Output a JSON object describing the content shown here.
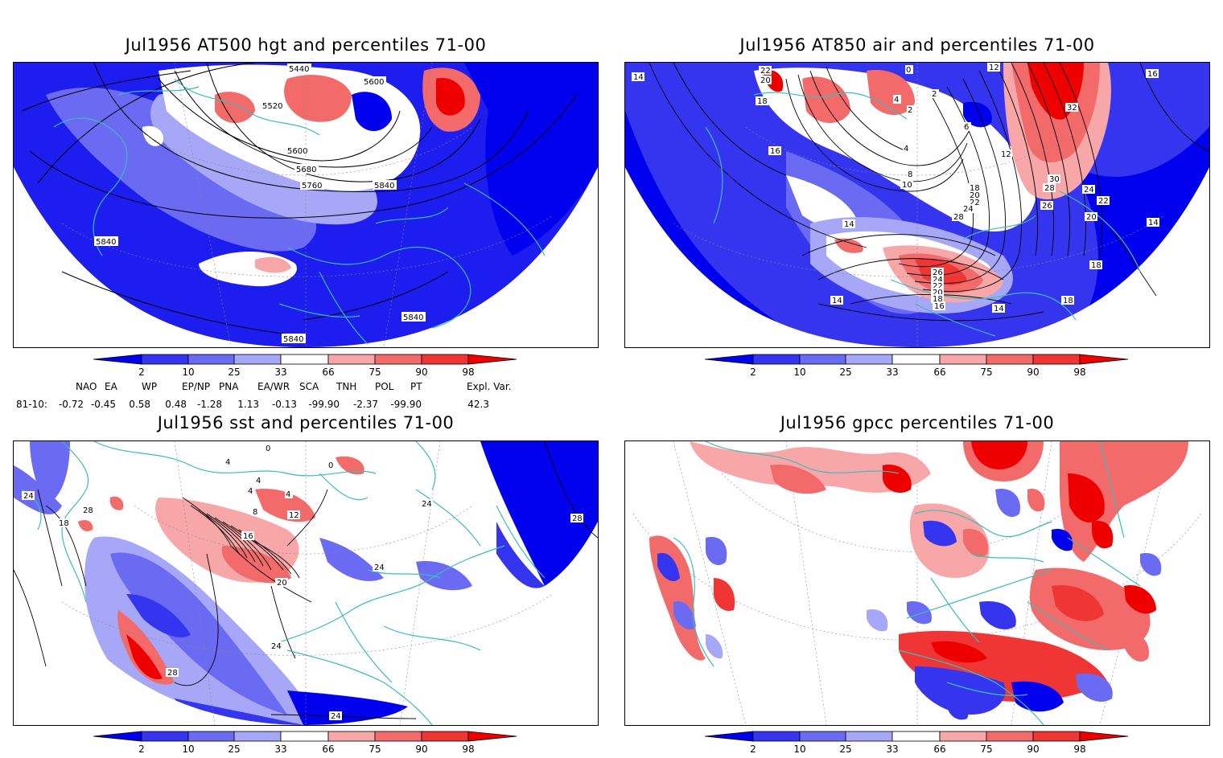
{
  "panels": [
    {
      "id": "hgt",
      "title": "Jul1956 AT500 hgt and percentiles 71-00",
      "contour_labels": [
        "5440",
        "5600",
        "5520",
        "5600",
        "5680",
        "5760",
        "5840",
        "5840",
        "5840",
        "5840"
      ]
    },
    {
      "id": "air",
      "title": "Jul1956 AT850 air and percentiles 71-00",
      "contour_labels": [
        "22",
        "20",
        "18",
        "14",
        "12",
        "16",
        "0",
        "4",
        "2",
        "2",
        "6",
        "4",
        "16",
        "12",
        "8",
        "10",
        "18",
        "20",
        "22",
        "24",
        "28",
        "30",
        "28",
        "26",
        "24",
        "22",
        "20",
        "14",
        "14",
        "26",
        "24",
        "22",
        "20",
        "18",
        "16",
        "14",
        "18",
        "18",
        "32",
        "14"
      ]
    },
    {
      "id": "sst",
      "title": "Jul1956 sst and percentiles 71-00",
      "contour_labels": [
        "24",
        "18",
        "28",
        "0",
        "4",
        "8",
        "12",
        "16",
        "20",
        "24",
        "24",
        "24",
        "28",
        "28",
        "24",
        "4",
        "0",
        "4",
        "4"
      ]
    },
    {
      "id": "gpcc",
      "title": "Jul1956 gpcc percentiles 71-00",
      "contour_labels": []
    }
  ],
  "colorbar": {
    "labels": [
      "2",
      "10",
      "25",
      "33",
      "66",
      "75",
      "90",
      "98"
    ],
    "colors": [
      "#0000ee",
      "#3535f0",
      "#6a6af2",
      "#a7a7f7",
      "#ffffff",
      "#f7a7a7",
      "#f26a6a",
      "#f03535",
      "#ee0000"
    ]
  },
  "indices": {
    "headers": [
      "NAO",
      "EA",
      "WP",
      "EP/NP",
      "PNA",
      "EA/WR",
      "SCA",
      "TNH",
      "POL",
      "PT",
      "Expl. Var."
    ],
    "row_label": "81-10:",
    "values": [
      "-0.72",
      "-0.45",
      "0.58",
      "0.48",
      "-1.28",
      "1.13",
      "-0.13",
      "-99.90",
      "-2.37",
      "-99.90",
      "42.3"
    ]
  }
}
